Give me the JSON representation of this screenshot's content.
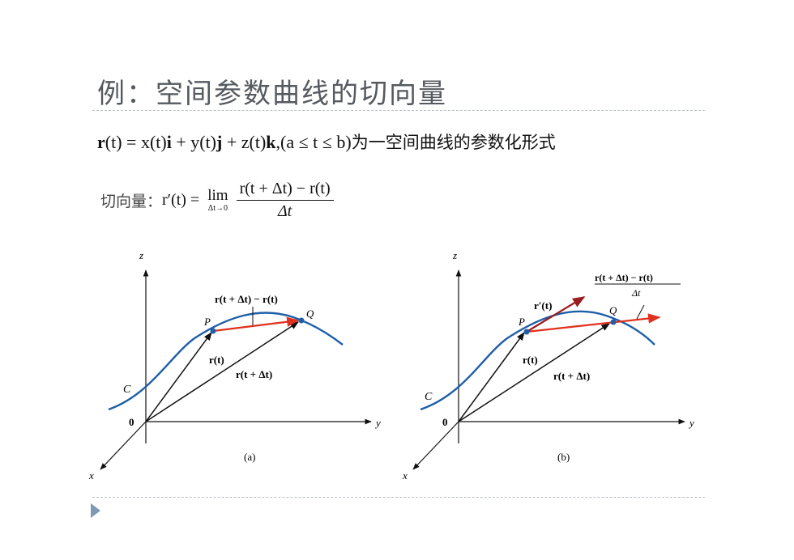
{
  "title": "例：空间参数曲线的切向量",
  "formula_param": {
    "r_bold": "r",
    "lhs": "(t) = x(t)",
    "i": "i",
    "mid1": " + y(t)",
    "j": "j",
    "mid2": " + z(t)",
    "k": "k",
    "cond": ",(a ≤ t ≤ b)",
    "tail": "为一空间曲线的参数化形式"
  },
  "formula_tangent": {
    "label": "切向量：",
    "lhs": "r′(t) =",
    "lim_word": "lim",
    "lim_sub": "Δt→0",
    "numerator": "r(t + Δt) − r(t)",
    "denominator": "Δt"
  },
  "figure_a": {
    "caption": "(a)",
    "z": "z",
    "y": "y",
    "x": "x",
    "origin": "0",
    "curve": "C",
    "p": "P",
    "q": "Q",
    "label_diff": "r(t + Δt) − r(t)",
    "label_rt": "r(t)",
    "label_rtdt": "r(t + Δt)"
  },
  "figure_b": {
    "caption": "(b)",
    "z": "z",
    "y": "y",
    "x": "x",
    "origin": "0",
    "curve": "C",
    "p": "P",
    "q": "Q",
    "label_deriv": "r′(t)",
    "label_frac_num": "r(t + Δt) − r(t)",
    "label_frac_den": "Δt",
    "label_rt": "r(t)",
    "label_rtdt": "r(t + Δt)"
  },
  "colors": {
    "curve": "#1f5fa8",
    "secant": "#e0301e",
    "tangent": "#9a1c1c",
    "rule": "#b8bfc8"
  }
}
